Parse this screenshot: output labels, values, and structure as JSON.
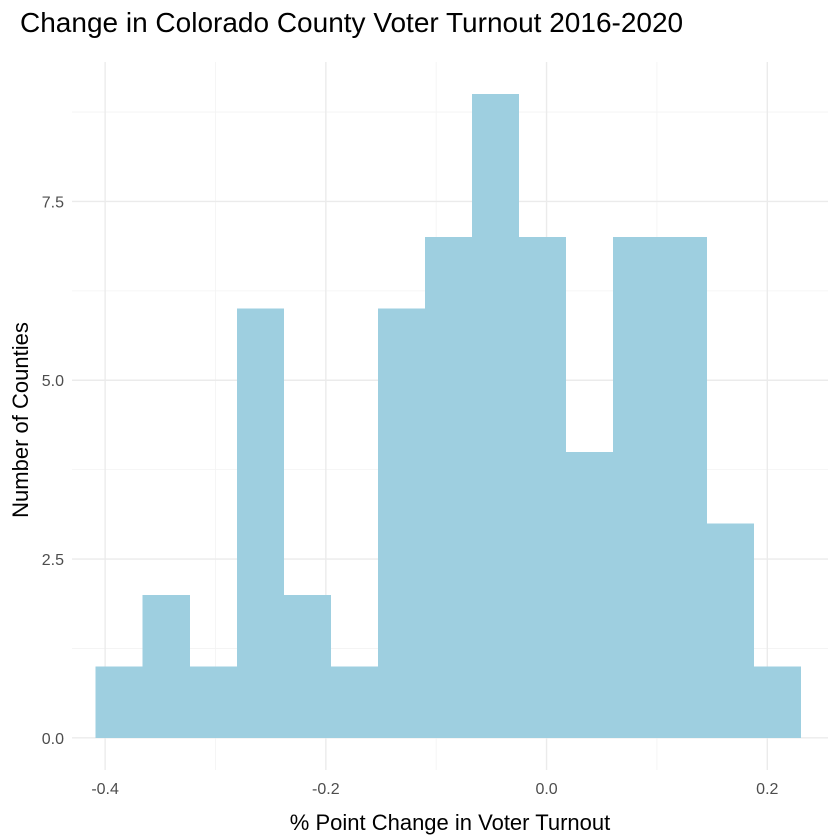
{
  "chart_data": {
    "type": "bar",
    "subtype": "histogram",
    "title": "Change in Colorado County Voter Turnout 2016-2020",
    "xlabel": "% Point Change in Voter Turnout",
    "ylabel": "Number of Counties",
    "bin_width": 0.0426,
    "bins": [
      {
        "x0": -0.4085,
        "x1": -0.3659,
        "count": 1
      },
      {
        "x0": -0.3659,
        "x1": -0.3233,
        "count": 2
      },
      {
        "x0": -0.3233,
        "x1": -0.2807,
        "count": 1
      },
      {
        "x0": -0.2807,
        "x1": -0.2381,
        "count": 6
      },
      {
        "x0": -0.2381,
        "x1": -0.1955,
        "count": 2
      },
      {
        "x0": -0.1955,
        "x1": -0.1529,
        "count": 1
      },
      {
        "x0": -0.1529,
        "x1": -0.1103,
        "count": 6
      },
      {
        "x0": -0.1103,
        "x1": -0.0677,
        "count": 7
      },
      {
        "x0": -0.0677,
        "x1": -0.0251,
        "count": 9
      },
      {
        "x0": -0.0251,
        "x1": 0.0175,
        "count": 7
      },
      {
        "x0": 0.0175,
        "x1": 0.0601,
        "count": 4
      },
      {
        "x0": 0.0601,
        "x1": 0.1027,
        "count": 7
      },
      {
        "x0": 0.1027,
        "x1": 0.1453,
        "count": 7
      },
      {
        "x0": 0.1453,
        "x1": 0.1879,
        "count": 3
      },
      {
        "x0": 0.1879,
        "x1": 0.2305,
        "count": 1
      }
    ],
    "xlim": [
      -0.43,
      0.255
    ],
    "ylim": [
      -0.45,
      9.45
    ],
    "x_ticks": [
      -0.4,
      -0.2,
      0.0,
      0.2
    ],
    "x_tick_labels": [
      "-0.4",
      "-0.2",
      "0.0",
      "0.2"
    ],
    "y_ticks": [
      0,
      2.5,
      5,
      7.5
    ],
    "y_tick_labels": [
      "0.0",
      "2.5",
      "5.0",
      "7.5"
    ],
    "bar_color": "#9ecfe0",
    "grid": true,
    "legend": "none"
  }
}
